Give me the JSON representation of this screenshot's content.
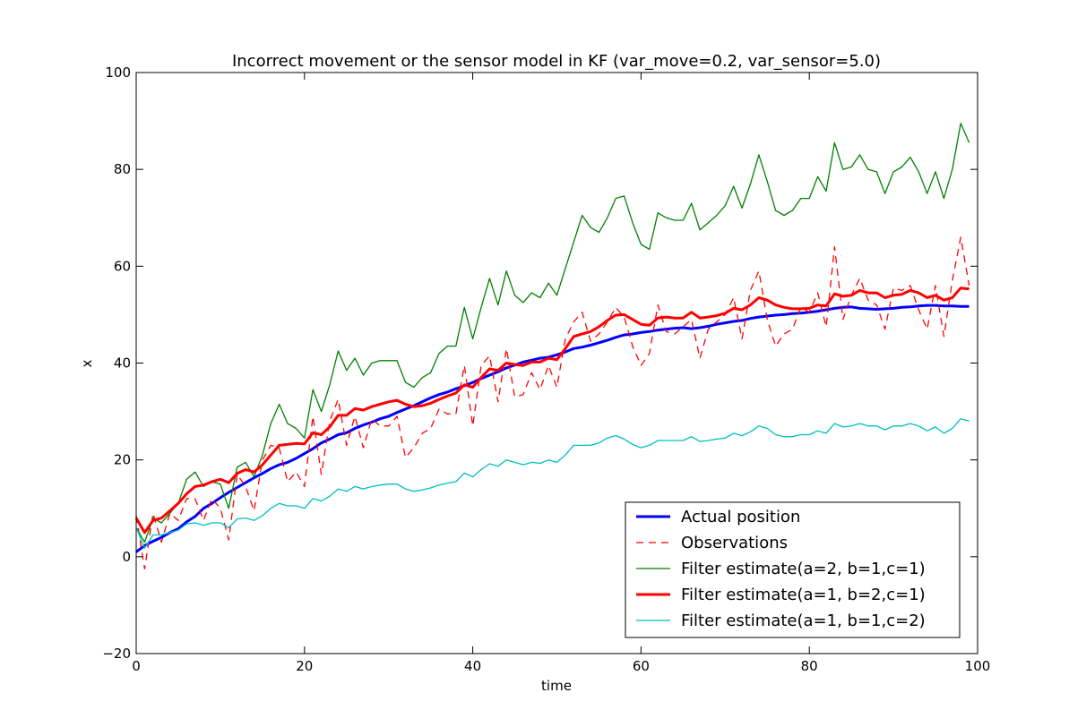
{
  "chart_data": {
    "type": "line",
    "title": "Incorrect movement or the sensor model in KF (var_move=0.2, var_sensor=5.0)",
    "xlabel": "time",
    "ylabel": "x",
    "xlim": [
      0,
      100
    ],
    "ylim": [
      -20,
      100
    ],
    "xticks": [
      "0",
      "20",
      "40",
      "60",
      "80",
      "100"
    ],
    "yticks": [
      "−20",
      "0",
      "20",
      "40",
      "60",
      "80",
      "100"
    ],
    "grid": false,
    "legend_position": "lower-right",
    "series": [
      {
        "name": "Actual position",
        "color": "#0000ff",
        "style": "solid-thick",
        "values": [
          1.0,
          2.3,
          3.2,
          4.0,
          5.0,
          5.8,
          7.2,
          8.3,
          10.0,
          11.0,
          12.2,
          13.3,
          14.3,
          15.3,
          16.3,
          17.2,
          18.2,
          19.0,
          19.5,
          20.3,
          21.3,
          22.3,
          23.5,
          24.3,
          25.2,
          25.6,
          26.5,
          27.2,
          27.8,
          28.5,
          29.0,
          29.8,
          30.5,
          31.2,
          32.0,
          32.8,
          33.5,
          34.0,
          34.7,
          35.3,
          36.0,
          36.8,
          37.5,
          38.2,
          39.0,
          39.6,
          40.2,
          40.6,
          41.0,
          41.2,
          41.7,
          42.3,
          43.0,
          43.3,
          43.7,
          44.2,
          44.7,
          45.3,
          45.8,
          46.0,
          46.3,
          46.5,
          46.8,
          47.0,
          47.2,
          47.3,
          47.1,
          47.3,
          47.6,
          48.0,
          48.3,
          48.6,
          48.8,
          49.2,
          49.5,
          49.7,
          49.9,
          50.0,
          50.2,
          50.3,
          50.5,
          50.7,
          51.0,
          51.3,
          51.5,
          51.6,
          51.3,
          51.2,
          51.1,
          51.2,
          51.3,
          51.5,
          51.6,
          51.8,
          51.9,
          51.9,
          51.8,
          51.8,
          51.7,
          51.7
        ]
      },
      {
        "name": "Observations",
        "color": "#ff0000",
        "style": "dashed",
        "values": [
          8.5,
          -2.5,
          9.0,
          3.0,
          9.0,
          7.5,
          12.0,
          12.0,
          7.5,
          12.0,
          10.0,
          3.5,
          17.0,
          14.5,
          9.5,
          20.0,
          23.0,
          22.5,
          15.5,
          17.5,
          14.5,
          29.0,
          17.0,
          28.0,
          32.5,
          23.0,
          29.0,
          22.5,
          28.5,
          27.0,
          27.0,
          29.0,
          20.5,
          22.5,
          25.5,
          26.5,
          30.5,
          29.5,
          29.5,
          39.5,
          27.0,
          39.5,
          41.5,
          32.0,
          43.0,
          33.0,
          33.5,
          38.0,
          34.5,
          39.5,
          35.0,
          45.0,
          48.5,
          50.5,
          44.5,
          46.0,
          48.5,
          51.5,
          49.5,
          43.5,
          39.5,
          42.0,
          52.0,
          46.5,
          46.0,
          47.5,
          49.0,
          41.0,
          47.0,
          48.5,
          50.0,
          53.5,
          45.0,
          55.0,
          59.0,
          49.0,
          43.5,
          46.0,
          47.0,
          51.5,
          50.5,
          54.5,
          47.5,
          64.0,
          49.0,
          54.0,
          57.5,
          53.0,
          52.0,
          47.0,
          55.5,
          55.0,
          56.0,
          51.0,
          47.0,
          56.0,
          45.5,
          57.0,
          66.0,
          56.0
        ]
      },
      {
        "name": "Filter estimate(a=2, b=1,c=1)",
        "color": "#008000",
        "style": "solid-thin",
        "values": [
          6.0,
          3.0,
          8.0,
          7.0,
          9.0,
          11.0,
          16.0,
          17.5,
          14.5,
          15.5,
          15.0,
          10.0,
          18.5,
          19.5,
          16.5,
          21.0,
          27.5,
          31.5,
          27.5,
          26.5,
          24.5,
          34.5,
          30.0,
          35.5,
          42.5,
          38.5,
          41.0,
          37.5,
          40.0,
          40.5,
          40.5,
          40.5,
          36.0,
          35.0,
          37.0,
          38.0,
          42.0,
          43.5,
          43.5,
          51.5,
          45.0,
          51.5,
          57.5,
          52.0,
          59.0,
          54.0,
          52.5,
          54.5,
          53.5,
          56.5,
          54.0,
          59.5,
          65.0,
          70.5,
          68.0,
          67.0,
          70.0,
          74.0,
          74.5,
          69.0,
          64.5,
          63.5,
          71.0,
          70.0,
          69.5,
          69.5,
          73.0,
          67.5,
          69.0,
          70.5,
          72.5,
          76.5,
          72.0,
          77.0,
          83.0,
          77.5,
          71.5,
          70.5,
          71.5,
          74.0,
          74.0,
          78.5,
          75.5,
          85.5,
          80.0,
          80.5,
          83.0,
          80.0,
          79.5,
          75.0,
          79.5,
          80.5,
          82.5,
          79.5,
          75.0,
          79.5,
          74.0,
          80.0,
          89.5,
          85.5
        ]
      },
      {
        "name": "Filter estimate(a=1, b=2,c=1)",
        "color": "#ff0000",
        "style": "solid-thick",
        "values": [
          8.0,
          5.0,
          7.5,
          8.0,
          9.5,
          11.0,
          13.0,
          14.5,
          14.8,
          15.5,
          16.0,
          15.3,
          17.2,
          18.0,
          17.5,
          19.0,
          21.0,
          23.0,
          23.2,
          23.4,
          23.3,
          25.6,
          25.2,
          26.8,
          29.2,
          29.2,
          30.6,
          30.3,
          31.0,
          31.5,
          32.0,
          32.3,
          31.5,
          31.0,
          31.2,
          31.7,
          32.5,
          33.2,
          33.8,
          35.5,
          35.0,
          37.0,
          38.8,
          38.5,
          40.0,
          39.7,
          39.5,
          40.2,
          40.2,
          41.0,
          40.7,
          43.0,
          45.5,
          46.0,
          46.5,
          47.5,
          48.8,
          49.9,
          50.0,
          49.0,
          48.0,
          47.8,
          49.3,
          49.5,
          49.3,
          49.3,
          50.5,
          49.3,
          49.5,
          49.8,
          50.3,
          51.3,
          51.0,
          52.0,
          53.5,
          53.0,
          52.0,
          51.5,
          51.2,
          51.2,
          51.3,
          52.0,
          51.8,
          54.3,
          53.8,
          54.0,
          55.0,
          54.5,
          54.5,
          53.5,
          54.0,
          54.2,
          55.0,
          54.5,
          53.5,
          54.0,
          53.0,
          53.5,
          55.5,
          55.3
        ]
      },
      {
        "name": "Filter estimate(a=1, b=1,c=2)",
        "color": "#00bfbf",
        "style": "solid-thin",
        "values": [
          6.0,
          1.8,
          4.5,
          4.5,
          5.0,
          5.5,
          6.8,
          7.0,
          6.5,
          7.0,
          7.0,
          6.0,
          7.8,
          8.0,
          7.5,
          8.5,
          10.0,
          11.0,
          10.5,
          10.5,
          10.0,
          12.0,
          11.5,
          12.5,
          14.0,
          13.5,
          14.5,
          14.0,
          14.5,
          14.8,
          15.0,
          15.0,
          14.0,
          13.5,
          13.8,
          14.2,
          14.8,
          15.2,
          15.5,
          17.3,
          16.5,
          18.0,
          19.2,
          18.7,
          20.0,
          19.5,
          19.0,
          19.5,
          19.3,
          20.0,
          19.5,
          21.0,
          23.0,
          23.0,
          23.0,
          23.5,
          24.5,
          25.0,
          24.3,
          23.2,
          22.5,
          23.0,
          24.0,
          24.0,
          24.0,
          24.0,
          24.8,
          23.8,
          24.0,
          24.3,
          24.5,
          25.5,
          25.0,
          25.8,
          27.0,
          26.5,
          25.2,
          24.8,
          24.8,
          25.2,
          25.2,
          26.0,
          25.5,
          27.5,
          26.8,
          27.0,
          27.5,
          27.0,
          27.0,
          26.2,
          27.0,
          27.0,
          27.5,
          27.0,
          26.0,
          26.8,
          25.5,
          26.5,
          28.5,
          28.0
        ]
      }
    ]
  }
}
